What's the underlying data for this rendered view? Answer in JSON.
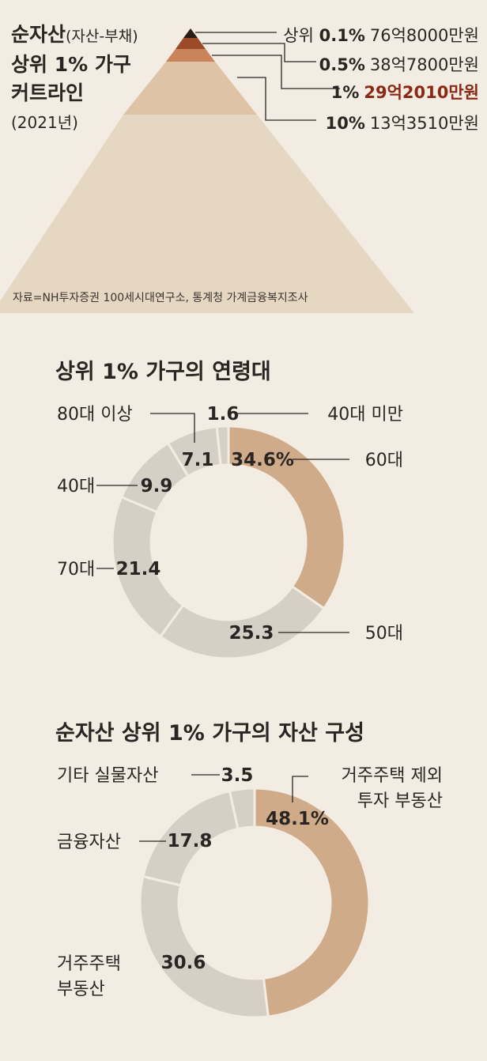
{
  "chart_data": [
    {
      "type": "pyramid",
      "title": "순자산",
      "title_paren": "(자산-부채)",
      "subtitle_line1": "상위 1% 가구",
      "subtitle_line2": "커트라인",
      "year_note": "(2021년)",
      "levels": [
        {
          "prefix": "상위 ",
          "pct": "0.1%",
          "amount": "76억8000만원",
          "color": "#2b1c14",
          "highlight": false
        },
        {
          "prefix": "",
          "pct": "0.5%",
          "amount": "38억7800만원",
          "color": "#9c4a27",
          "highlight": false
        },
        {
          "prefix": "",
          "pct": "1%",
          "amount": "29억2010만원",
          "color": "#c9845a",
          "highlight": true
        },
        {
          "prefix": "",
          "pct": "10%",
          "amount": "13억3510만원",
          "color": "#dfc3a6",
          "highlight": false
        }
      ],
      "base_color": "#e6d7c2",
      "source": "자료=NH투자증권 100세시대연구소, 통계청 가계금융복지조사"
    },
    {
      "type": "pie",
      "title": "상위 1% 가구의 연령대",
      "unit": "%",
      "categories": [
        "60대",
        "50대",
        "70대",
        "40대",
        "80대 이상",
        "40대 미만"
      ],
      "values": [
        34.6,
        25.3,
        21.4,
        9.9,
        7.1,
        1.6
      ],
      "value_labels": [
        "34.6%",
        "25.3",
        "21.4",
        "9.9",
        "7.1",
        "1.6"
      ],
      "colors": [
        "#cfab89",
        "#d6cfc6",
        "#d6cfc6",
        "#d6cfc6",
        "#d6cfc6",
        "#d6cfc6"
      ]
    },
    {
      "type": "pie",
      "title": "순자산 상위 1% 가구의 자산 구성",
      "unit": "%",
      "categories": [
        "거주주택 제외 투자 부동산",
        "거주주택 부동산",
        "금융자산",
        "기타 실물자산"
      ],
      "label_lines": [
        [
          "거주주택 제외",
          "투자 부동산"
        ],
        [
          "거주주택",
          "부동산"
        ],
        [
          "금융자산"
        ],
        [
          "기타 실물자산"
        ]
      ],
      "values": [
        48.1,
        30.6,
        17.8,
        3.5
      ],
      "value_labels": [
        "48.1%",
        "30.6",
        "17.8",
        "3.5"
      ],
      "colors": [
        "#cfab89",
        "#d6cfc6",
        "#d6cfc6",
        "#d6cfc6"
      ]
    }
  ]
}
